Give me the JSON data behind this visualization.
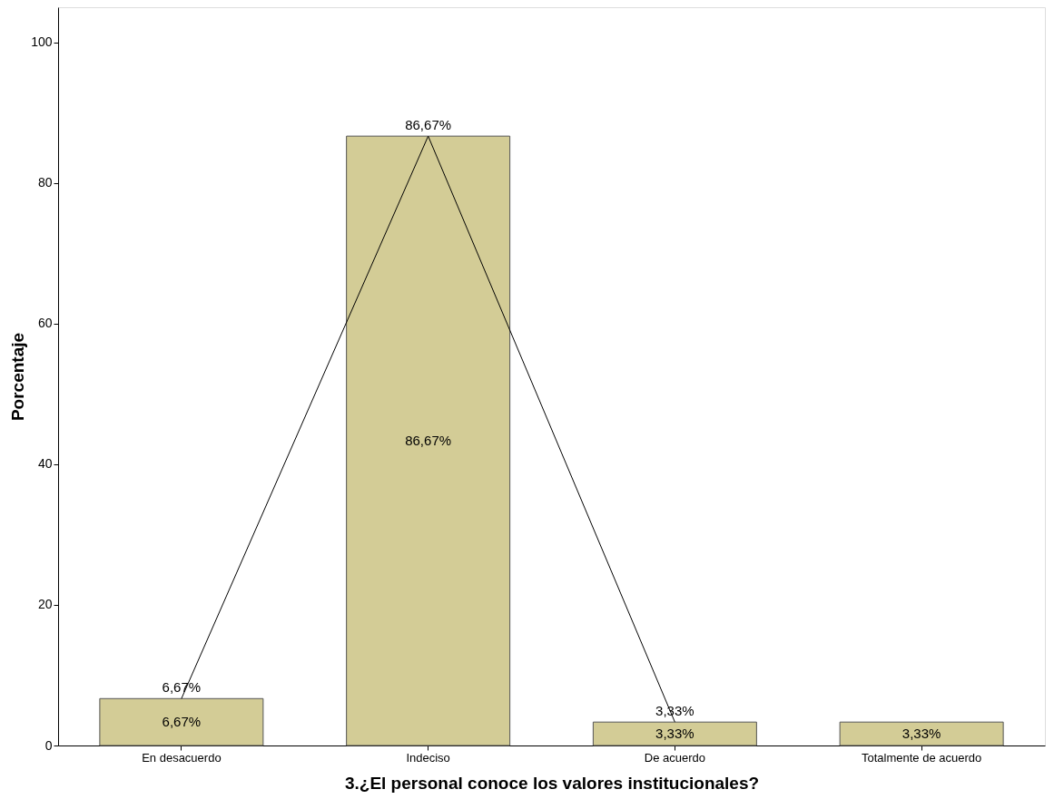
{
  "chart_data": {
    "type": "bar",
    "xlabel": "3.¿El personal conoce los valores institucionales?",
    "ylabel": "Porcentaje",
    "categories": [
      "En desacuerdo",
      "Indeciso",
      "De acuerdo",
      "Totalmente de acuerdo"
    ],
    "series": [
      {
        "color": "#d3cc96",
        "values": [
          6.67,
          86.67,
          3.33,
          3.33
        ],
        "value_labels": [
          "6,67%",
          "86,67%",
          "3,33%",
          "3,33%"
        ]
      },
      {
        "type": "line",
        "color": "#000000",
        "values": [
          6.67,
          86.67,
          3.33,
          null
        ],
        "value_labels": [
          "6,67%",
          "86,67%",
          "3,33%",
          null
        ]
      }
    ],
    "ylim": [
      0,
      105
    ],
    "yticks": [
      0,
      20,
      40,
      60,
      80,
      100
    ],
    "grid": false,
    "marker": "none",
    "line_style": "solid"
  }
}
